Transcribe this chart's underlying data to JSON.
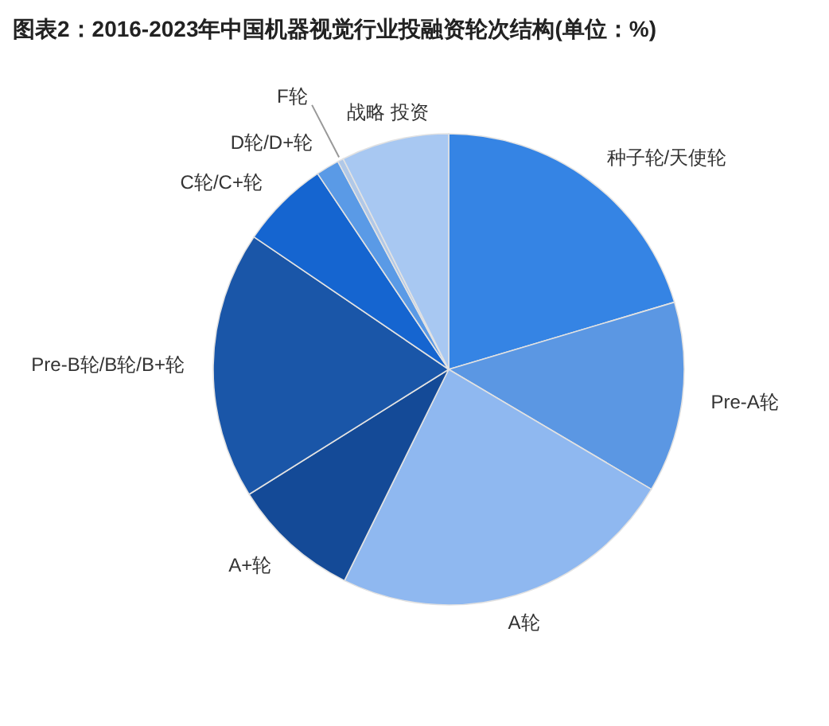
{
  "chart_data": {
    "type": "pie",
    "title": "图表2：2016-2023年中国机器视觉行业投融资轮次结构(单位：%)",
    "categories": [
      "种子轮/天使轮",
      "Pre-A轮",
      "A轮",
      "A+轮",
      "Pre-B轮/B轮/B+轮",
      "C轮/C+轮",
      "D轮/D+轮",
      "F轮",
      "战略 投资"
    ],
    "values": [
      20.4,
      13.1,
      23.8,
      8.8,
      18.4,
      6.1,
      1.6,
      0.4,
      7.4
    ],
    "colors": [
      "#3584e4",
      "#5b97e3",
      "#8fb8f0",
      "#144a97",
      "#1a56a8",
      "#1565d0",
      "#5a9ae6",
      "#b0c8e8",
      "#a8c8f2"
    ]
  }
}
